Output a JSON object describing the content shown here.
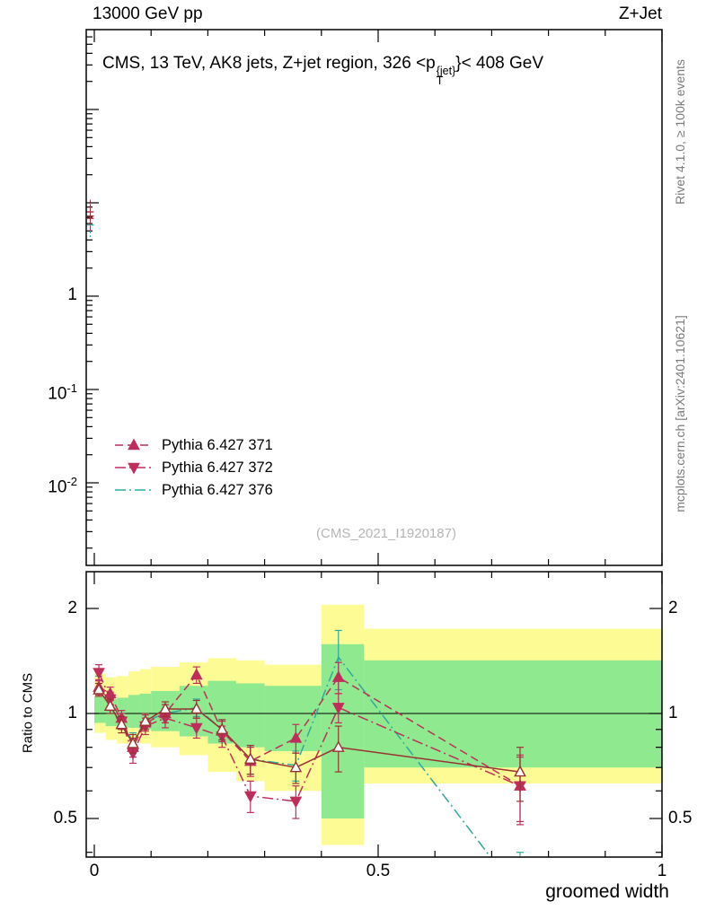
{
  "header": {
    "left": "13000 GeV pp",
    "right": "Z+Jet"
  },
  "side_labels": {
    "rivet": "Rivet 4.1.0, ≥ 100k events",
    "mcplots": "mcplots.cern.ch [arXiv:2401.10621]"
  },
  "main_panel": {
    "title": {
      "text_before": "CMS, 13 TeV, AK8 jets, Z+jet region, 326 <p",
      "superscript": "{jet}",
      "subscript": "T",
      "text_after": "}< 408 GeV"
    },
    "watermark": "(CMS_2021_I1920187)",
    "y_axis": {
      "scale": "log",
      "tick_labels": [
        {
          "base": "1",
          "exp": ""
        },
        {
          "base": "10",
          "exp": "-1"
        },
        {
          "base": "10",
          "exp": "-2"
        }
      ],
      "tick_values": [
        1,
        0.1,
        0.01
      ]
    },
    "edge_spike": {
      "x": 0.004,
      "values": [
        8.0,
        6.8,
        5.8,
        7.2
      ]
    }
  },
  "legend": [
    {
      "label": "Pythia 6.427 371",
      "color": "#bf2e5a",
      "line": "dashed",
      "marker": "triangle-up-filled"
    },
    {
      "label": "Pythia 6.427 372",
      "color": "#bf2e5a",
      "line": "dashdot",
      "marker": "triangle-down-filled"
    },
    {
      "label": "Pythia 6.427 376",
      "color": "#2faa9c",
      "line": "dashdot",
      "marker": "none"
    }
  ],
  "ratio_panel": {
    "ylabel": "Ratio to CMS",
    "y_tick_labels": [
      "2",
      "1",
      "0.5"
    ],
    "y_tick_values": [
      2,
      1,
      0.5
    ],
    "x_tick_labels": [
      "0",
      "0.5",
      "1"
    ],
    "x_tick_values": [
      0,
      0.5,
      1
    ],
    "xlabel": "groomed width"
  },
  "chart_data": {
    "type": "line",
    "title": "CMS, 13 TeV, AK8 jets, Z+jet region, 326 < pT^{jet} < 408 GeV",
    "xlabel": "groomed width",
    "ratio_ylabel": "Ratio to CMS",
    "x_range": [
      0,
      1
    ],
    "ratio_y_scale": "log",
    "ratio_y_range": [
      0.39,
      2.55
    ],
    "ratio_reference_line": 1.0,
    "series": [
      {
        "name": "Pythia 6.427 371",
        "color": "#bf2e5a",
        "line": "dashed",
        "marker": "triangle-up-filled",
        "x": [
          0.008,
          0.028,
          0.048,
          0.068,
          0.09,
          0.125,
          0.18,
          0.225,
          0.275,
          0.355,
          0.43,
          0.75
        ],
        "y": [
          1.19,
          1.14,
          0.97,
          0.8,
          0.94,
          1.0,
          1.29,
          0.89,
          0.73,
          0.85,
          1.27,
          0.62
        ],
        "yerr": [
          0.06,
          0.05,
          0.05,
          0.05,
          0.05,
          0.06,
          0.07,
          0.06,
          0.07,
          0.08,
          0.13,
          0.14
        ]
      },
      {
        "name": "Pythia 6.427 372",
        "color": "#bf2e5a",
        "line": "dashdot",
        "marker": "triangle-down-filled",
        "x": [
          0.008,
          0.028,
          0.048,
          0.068,
          0.09,
          0.125,
          0.18,
          0.225,
          0.275,
          0.355,
          0.43,
          0.75
        ],
        "y": [
          1.31,
          1.1,
          0.95,
          0.77,
          0.92,
          0.97,
          0.91,
          0.86,
          0.58,
          0.56,
          1.04,
          0.62
        ],
        "yerr": [
          0.07,
          0.05,
          0.05,
          0.05,
          0.05,
          0.06,
          0.06,
          0.06,
          0.06,
          0.06,
          0.1,
          0.13
        ]
      },
      {
        "name": "Pythia 6.427 376",
        "color": "#2faa9c",
        "line": "dashdot",
        "marker": "none",
        "x": [
          0.008,
          0.028,
          0.048,
          0.068,
          0.09,
          0.125,
          0.18,
          0.225,
          0.275,
          0.355,
          0.43,
          0.75
        ],
        "y": [
          1.22,
          1.07,
          0.95,
          0.83,
          0.95,
          1.0,
          1.04,
          0.9,
          0.74,
          0.71,
          1.45,
          0.3
        ],
        "yerr": [
          0.06,
          0.05,
          0.05,
          0.05,
          0.05,
          0.06,
          0.06,
          0.06,
          0.07,
          0.07,
          0.28,
          0.1
        ]
      },
      {
        "name": "(no legend entry)",
        "note": "open-triangle markers with solid line, unlabeled in legend",
        "color": "#993333",
        "line": "solid",
        "marker": "triangle-up-open",
        "x": [
          0.008,
          0.028,
          0.048,
          0.068,
          0.09,
          0.125,
          0.18,
          0.225,
          0.275,
          0.355,
          0.43,
          0.75
        ],
        "y": [
          1.17,
          1.05,
          0.93,
          0.82,
          0.95,
          1.03,
          1.03,
          0.9,
          0.74,
          0.7,
          0.8,
          0.68
        ],
        "yerr": [
          0.05,
          0.05,
          0.05,
          0.05,
          0.05,
          0.05,
          0.06,
          0.06,
          0.07,
          0.07,
          0.12,
          0.12
        ]
      }
    ],
    "uncertainty_bands": {
      "yellow": [
        [
          0.0,
          0.02,
          0.88,
          1.3
        ],
        [
          0.02,
          0.04,
          0.84,
          1.27
        ],
        [
          0.04,
          0.06,
          0.82,
          1.28
        ],
        [
          0.06,
          0.08,
          0.83,
          1.32
        ],
        [
          0.08,
          0.1,
          0.82,
          1.34
        ],
        [
          0.1,
          0.15,
          0.8,
          1.36
        ],
        [
          0.15,
          0.2,
          0.76,
          1.4
        ],
        [
          0.2,
          0.25,
          0.68,
          1.44
        ],
        [
          0.25,
          0.3,
          0.64,
          1.42
        ],
        [
          0.3,
          0.4,
          0.6,
          1.38
        ],
        [
          0.4,
          0.475,
          0.42,
          2.05
        ],
        [
          0.475,
          1.0,
          0.63,
          1.75
        ]
      ],
      "green": [
        [
          0.0,
          0.02,
          0.94,
          1.12
        ],
        [
          0.02,
          0.04,
          0.92,
          1.1
        ],
        [
          0.04,
          0.06,
          0.91,
          1.11
        ],
        [
          0.06,
          0.08,
          0.91,
          1.13
        ],
        [
          0.08,
          0.1,
          0.9,
          1.14
        ],
        [
          0.1,
          0.15,
          0.89,
          1.16
        ],
        [
          0.15,
          0.2,
          0.86,
          1.2
        ],
        [
          0.2,
          0.25,
          0.82,
          1.24
        ],
        [
          0.25,
          0.3,
          0.8,
          1.22
        ],
        [
          0.3,
          0.4,
          0.78,
          1.2
        ],
        [
          0.4,
          0.475,
          0.5,
          1.58
        ],
        [
          0.475,
          1.0,
          0.7,
          1.42
        ]
      ]
    }
  },
  "colors": {
    "band_yellow": "#fdfb94",
    "band_green": "#8fe98f",
    "crimson": "#bf2e5a",
    "teal": "#2faa9c",
    "dark_red": "#993333",
    "watermark": "#b5b5b5"
  }
}
